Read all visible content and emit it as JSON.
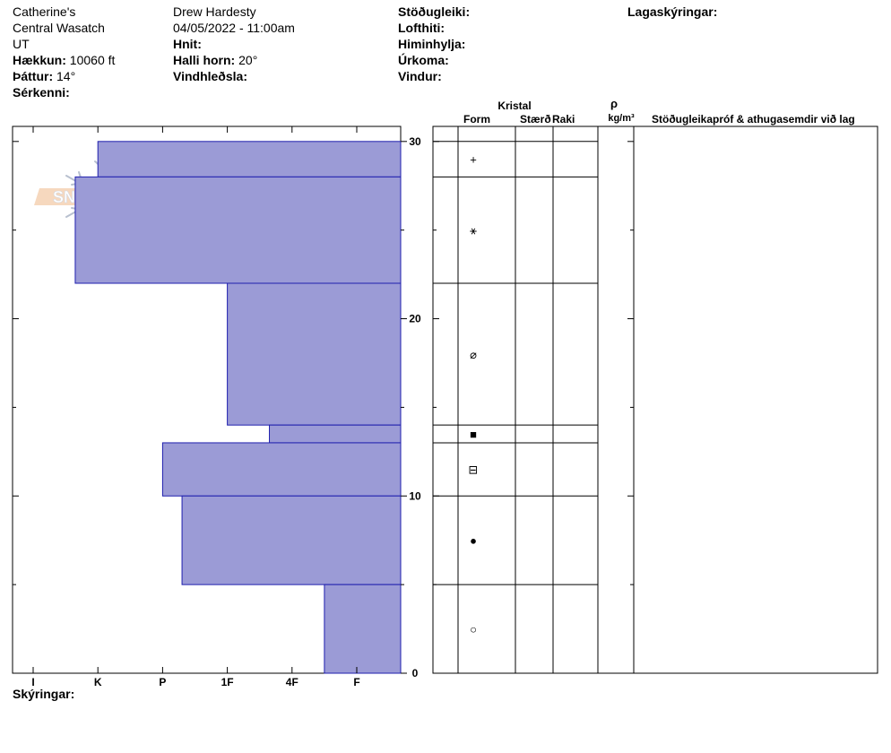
{
  "header": {
    "location": "Catherine's",
    "range": "Central Wasatch",
    "state": "UT",
    "elevation_label": "Hækkun:",
    "elevation_value": "10060 ft",
    "aspect_label": "Þáttur:",
    "aspect_value": "14°",
    "specifics_label": "Sérkenni:",
    "observer": "Drew Hardesty",
    "datetime": "04/05/2022 - 11:00am",
    "coords_label": "Hnit:",
    "slope_label": "Halli horn:",
    "slope_value": "20°",
    "wind_loading_label": "Vindhleðsla:",
    "stability_label": "Stöðugleiki:",
    "air_temp_label": "Lofthiti:",
    "sky_label": "Himinhylja:",
    "precip_label": "Úrkoma:",
    "wind_label": "Vindur:",
    "layer_notes_label": "Lagaskýringar:"
  },
  "logo": {
    "text": "SNOW PILOT"
  },
  "columns": {
    "crystal": "Kristal",
    "form": "Form",
    "size": "Stærð",
    "moisture": "Raki",
    "rho": "ρ",
    "density_unit": "kg/m³",
    "tests": "Stöðugleikapróf & athugasemdir við lag"
  },
  "legend_label": "Skýringar:",
  "colors": {
    "layer_fill": "#9b9bd6",
    "layer_stroke": "#1f1fae"
  },
  "chart_data": {
    "type": "bar",
    "orientation": "horizontal",
    "title": "",
    "xlabel": "",
    "ylabel": "",
    "hardness_ticks": [
      "I",
      "K",
      "P",
      "1F",
      "4F",
      "F"
    ],
    "height_ticks": [
      "0",
      "10",
      "20",
      "30"
    ],
    "ylim": [
      0,
      30
    ],
    "layers": [
      {
        "top": 30,
        "bottom": 28,
        "hardness_index": 1.0,
        "form": "+"
      },
      {
        "top": 28,
        "bottom": 22,
        "hardness_index": 0.65,
        "form": "⚹"
      },
      {
        "top": 22,
        "bottom": 14,
        "hardness_index": 3.0,
        "form": "⌀"
      },
      {
        "top": 14,
        "bottom": 13,
        "hardness_index": 3.65,
        "form": "■"
      },
      {
        "top": 13,
        "bottom": 10,
        "hardness_index": 2.0,
        "form": "⊟"
      },
      {
        "top": 10,
        "bottom": 5,
        "hardness_index": 2.3,
        "form": "●"
      },
      {
        "top": 5,
        "bottom": 0,
        "hardness_index": 4.5,
        "form": "○"
      }
    ]
  }
}
